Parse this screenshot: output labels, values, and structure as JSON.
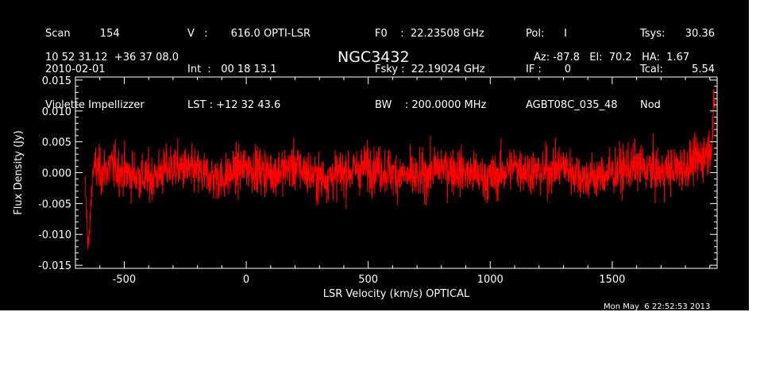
{
  "header": {
    "col1": [
      "Scan         154",
      "2010-02-01",
      "Violette Impellizzer"
    ],
    "col2": [
      "V   :       616.0 OPTI-LSR",
      "Int  :   00 18 13.1",
      "LST : +12 32 43.6"
    ],
    "col3": [
      "F0    :  22.23508 GHz",
      "Fsky :  22.19024 GHz",
      "BW    : 200.0000 MHz"
    ],
    "col4": [
      "Pol:      I",
      "IF :       0",
      "AGBT08C_035_48"
    ],
    "col5": [
      "Tsys:",
      "Tcal:",
      "Nod"
    ],
    "col6": [
      "30.36",
      "5.54",
      ""
    ]
  },
  "coordinates": "10 52 31.12  +36 37 08.0",
  "source": "NGC3432",
  "pointing": "Az: -87.8   El:  70.2   HA:  1.67",
  "timestamp": "Mon May  6 22:52:53 2013",
  "colors": {
    "background": "#000000",
    "axes": "#ffffff",
    "trace": "#ff0000"
  },
  "chart_data": {
    "type": "line",
    "xlabel": "LSR Velocity (km/s) OPTICAL",
    "ylabel": "Flux Density (Jy)",
    "xlim": [
      -700,
      1930
    ],
    "ylim": [
      -0.0155,
      0.0155
    ],
    "x_ticks": [
      -500,
      0,
      500,
      1000,
      1500
    ],
    "x_tick_labels": [
      "-500",
      "0",
      "500",
      "1000",
      "1500"
    ],
    "y_ticks": [
      0.015,
      0.01,
      0.005,
      0.0,
      -0.005,
      -0.01,
      -0.015
    ],
    "y_tick_labels": [
      "0.015",
      "0.010",
      "0.005",
      "0.000",
      "-0.005",
      "-0.010",
      "-0.015"
    ],
    "grid": false,
    "series": [
      {
        "color": "#ff0000",
        "x": [
          -660,
          -655,
          -650,
          -645,
          -640,
          -635,
          -630,
          -620,
          -600,
          -550,
          -500,
          -400,
          -300,
          -200,
          -100,
          0,
          100,
          200,
          300,
          400,
          500,
          600,
          700,
          800,
          900,
          1000,
          1100,
          1200,
          1300,
          1400,
          1500,
          1600,
          1700,
          1800,
          1850,
          1880,
          1900,
          1910,
          1915,
          1920
        ],
        "y": [
          -0.002,
          -0.006,
          -0.01,
          -0.012,
          -0.008,
          -0.004,
          0.0,
          0.001,
          0.0,
          0.001,
          0.0,
          -0.001,
          0.001,
          0.0,
          -0.001,
          0.001,
          0.0,
          0.001,
          -0.001,
          0.0,
          0.001,
          0.0,
          -0.001,
          0.001,
          0.0,
          -0.001,
          0.001,
          0.0,
          0.001,
          -0.001,
          0.0,
          0.001,
          0.0,
          0.001,
          0.002,
          0.003,
          0.004,
          0.006,
          0.009,
          0.011
        ],
        "noise_rms": 0.0025
      }
    ]
  }
}
